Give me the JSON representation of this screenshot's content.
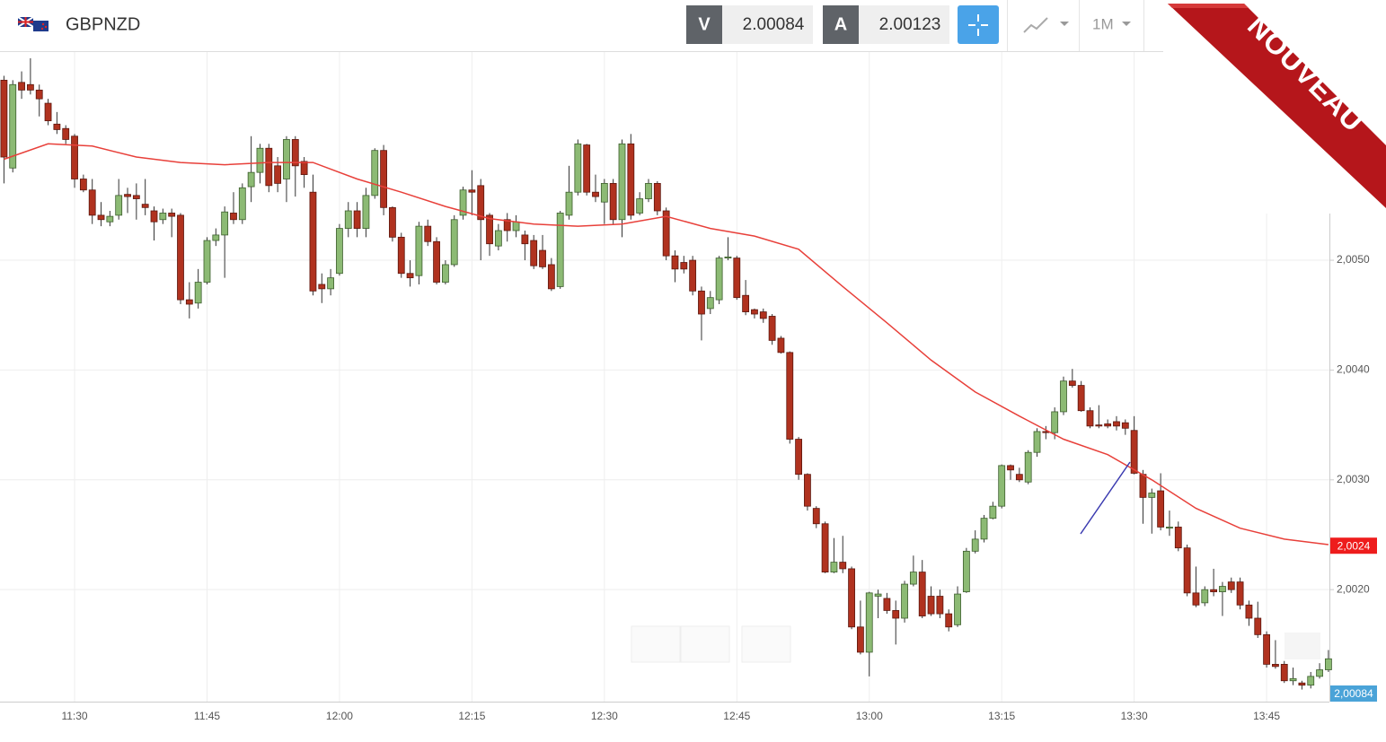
{
  "header": {
    "symbol": "GBPNZD",
    "bid_label": "V",
    "bid": 2.00084,
    "ask_label": "A",
    "ask": 2.00123,
    "timeframe": "1M"
  },
  "badge": "NOUVEAU",
  "chart_data": {
    "type": "candlestick",
    "x": [
      "11:22",
      "11:23",
      "11:24",
      "11:25",
      "11:26",
      "11:27",
      "11:28",
      "11:29",
      "11:30",
      "11:31",
      "11:32",
      "11:33",
      "11:34",
      "11:35",
      "11:36",
      "11:37",
      "11:38",
      "11:39",
      "11:40",
      "11:41",
      "11:42",
      "11:43",
      "11:44",
      "11:45",
      "11:46",
      "11:47",
      "11:48",
      "11:49",
      "11:50",
      "11:51",
      "11:52",
      "11:53",
      "11:54",
      "11:55",
      "11:56",
      "11:57",
      "11:58",
      "11:59",
      "12:00",
      "12:01",
      "12:02",
      "12:03",
      "12:04",
      "12:05",
      "12:06",
      "12:07",
      "12:08",
      "12:09",
      "12:10",
      "12:11",
      "12:12",
      "12:13",
      "12:14",
      "12:15",
      "12:16",
      "12:17",
      "12:18",
      "12:19",
      "12:20",
      "12:21",
      "12:22",
      "12:23",
      "12:24",
      "12:25",
      "12:26",
      "12:27",
      "12:28",
      "12:29",
      "12:30",
      "12:31",
      "12:32",
      "12:33",
      "12:34",
      "12:35",
      "12:36",
      "12:37",
      "12:38",
      "12:39",
      "12:40",
      "12:41",
      "12:42",
      "12:43",
      "12:44",
      "12:45",
      "12:46",
      "12:47",
      "12:48",
      "12:49",
      "12:50",
      "12:51",
      "12:52",
      "12:53",
      "12:54",
      "12:55",
      "12:56",
      "12:57",
      "12:58",
      "12:59",
      "13:00",
      "13:01",
      "13:02",
      "13:03",
      "13:04",
      "13:05",
      "13:06",
      "13:07",
      "13:08",
      "13:09",
      "13:10",
      "13:11",
      "13:12",
      "13:13",
      "13:14",
      "13:15",
      "13:16",
      "13:17",
      "13:18",
      "13:19",
      "13:20",
      "13:21",
      "13:22",
      "13:23",
      "13:24",
      "13:25",
      "13:26",
      "13:27",
      "13:28",
      "13:29",
      "13:30",
      "13:31",
      "13:32",
      "13:33",
      "13:34",
      "13:35",
      "13:36",
      "13:37",
      "13:38",
      "13:39",
      "13:40",
      "13:41",
      "13:42",
      "13:43",
      "13:44",
      "13:45",
      "13:46",
      "13:47",
      "13:48",
      "13:49",
      "13:50",
      "13:51",
      "13:52"
    ],
    "open": [
      2.00664,
      2.00584,
      2.00662,
      2.0066,
      2.00655,
      2.00643,
      2.00624,
      2.0062,
      2.00613,
      2.00574,
      2.00564,
      2.00541,
      2.00535,
      2.00541,
      2.0056,
      2.00559,
      2.00551,
      2.00545,
      2.00537,
      2.00543,
      2.00541,
      2.00464,
      2.00461,
      2.0048,
      2.00518,
      2.00523,
      2.00543,
      2.00537,
      2.00567,
      2.0058,
      2.00602,
      2.00586,
      2.00574,
      2.0061,
      2.0059,
      2.00562,
      2.00478,
      2.00474,
      2.00488,
      2.00529,
      2.00545,
      2.00529,
      2.00559,
      2.006,
      2.00548,
      2.00521,
      2.00488,
      2.00486,
      2.00531,
      2.00517,
      2.0048,
      2.00496,
      2.00541,
      2.00564,
      2.00568,
      2.00541,
      2.00513,
      2.00537,
      2.00527,
      2.00523,
      2.00518,
      2.00509,
      2.00496,
      2.00476,
      2.00541,
      2.00562,
      2.00605,
      2.00562,
      2.00553,
      2.0057,
      2.00537,
      2.00606,
      2.00543,
      2.00556,
      2.0057,
      2.00545,
      2.00504,
      2.00498,
      2.005,
      2.00472,
      2.00456,
      2.00464,
      2.00502,
      2.00502,
      2.00468,
      2.00455,
      2.00453,
      2.00449,
      2.00429,
      2.00416,
      2.00337,
      2.00305,
      2.00274,
      2.0026,
      2.00216,
      2.00225,
      2.00219,
      2.00166,
      2.00143,
      2.00194,
      2.00192,
      2.00181,
      2.00174,
      2.00205,
      2.00216,
      2.00194,
      2.00194,
      2.00178,
      2.00168,
      2.00198,
      2.00235,
      2.00246,
      2.00265,
      2.00276,
      2.00313,
      2.00305,
      2.00298,
      2.00325,
      2.00344,
      2.00343,
      2.00362,
      2.0039,
      2.00386,
      2.00363,
      2.0035,
      2.00351,
      2.00353,
      2.00352,
      2.00345,
      2.00305,
      2.00284,
      2.0029,
      2.00256,
      2.00257,
      2.00238,
      2.00197,
      2.00188,
      2.002,
      2.00198,
      2.00207,
      2.00207,
      2.00186,
      2.00174,
      2.00159,
      2.00132,
      2.00132,
      2.00117,
      2.00115,
      2.00113,
      2.00121,
      2.00127
    ],
    "high": [
      2.00668,
      2.00664,
      2.00672,
      2.00684,
      2.0066,
      2.00647,
      2.00635,
      2.00623,
      2.00615,
      2.00578,
      2.00574,
      2.00553,
      2.00545,
      2.00574,
      2.00566,
      2.0057,
      2.00574,
      2.00549,
      2.00547,
      2.00547,
      2.00543,
      2.0048,
      2.00492,
      2.00521,
      2.00529,
      2.00549,
      2.00562,
      2.0057,
      2.00613,
      2.00606,
      2.00606,
      2.00594,
      2.00613,
      2.00613,
      2.00594,
      2.00578,
      2.00488,
      2.00492,
      2.00533,
      2.00553,
      2.00553,
      2.00566,
      2.00602,
      2.00605,
      2.00549,
      2.00525,
      2.005,
      2.00535,
      2.00537,
      2.00521,
      2.005,
      2.00541,
      2.00567,
      2.00582,
      2.00574,
      2.00543,
      2.00533,
      2.00543,
      2.00541,
      2.00527,
      2.00523,
      2.00523,
      2.00502,
      2.00545,
      2.00586,
      2.0061,
      2.00606,
      2.00578,
      2.00574,
      2.00574,
      2.0061,
      2.00615,
      2.00562,
      2.00574,
      2.00572,
      2.00548,
      2.00509,
      2.00504,
      2.00504,
      2.00476,
      2.00472,
      2.00504,
      2.00521,
      2.00504,
      2.00482,
      2.00456,
      2.00456,
      2.00451,
      2.00431,
      2.00417,
      2.00339,
      2.00306,
      2.00276,
      2.00262,
      2.00247,
      2.00249,
      2.00221,
      2.0019,
      2.00198,
      2.002,
      2.00197,
      2.0019,
      2.00208,
      2.00231,
      2.00227,
      2.00203,
      2.002,
      2.00182,
      2.00203,
      2.00238,
      2.00254,
      2.00268,
      2.0028,
      2.00314,
      2.00314,
      2.00311,
      2.00327,
      2.00347,
      2.00349,
      2.00366,
      2.00394,
      2.00401,
      2.0039,
      2.00366,
      2.00368,
      2.00355,
      2.00358,
      2.00355,
      2.00358,
      2.00309,
      2.00292,
      2.00306,
      2.00272,
      2.00262,
      2.00241,
      2.00221,
      2.00203,
      2.00219,
      2.00207,
      2.00211,
      2.00211,
      2.0019,
      2.00189,
      2.00162,
      2.00154,
      2.00135,
      2.00129,
      2.00117,
      2.00125,
      2.00133,
      2.00145
    ],
    "low": [
      2.0057,
      2.0058,
      2.00647,
      2.00651,
      2.00631,
      2.00623,
      2.00615,
      2.00606,
      2.00566,
      2.00562,
      2.00533,
      2.00531,
      2.00531,
      2.00537,
      2.00543,
      2.00537,
      2.00541,
      2.00518,
      2.00533,
      2.00521,
      2.0046,
      2.00447,
      2.00456,
      2.00478,
      2.00513,
      2.00484,
      2.00533,
      2.00533,
      2.00553,
      2.0057,
      2.00562,
      2.00562,
      2.00553,
      2.00558,
      2.00566,
      2.00468,
      2.00461,
      2.00468,
      2.00486,
      2.00521,
      2.00521,
      2.00521,
      2.00556,
      2.00541,
      2.00517,
      2.00484,
      2.00476,
      2.00478,
      2.00513,
      2.00478,
      2.00478,
      2.00494,
      2.00537,
      2.00541,
      2.005,
      2.00504,
      2.00509,
      2.00517,
      2.00521,
      2.005,
      2.00492,
      2.00492,
      2.00472,
      2.00474,
      2.00537,
      2.00559,
      2.00559,
      2.00553,
      2.00533,
      2.00533,
      2.00521,
      2.00537,
      2.00541,
      2.00553,
      2.00541,
      2.005,
      2.0048,
      2.00488,
      2.00468,
      2.00427,
      2.00451,
      2.0046,
      2.005,
      2.00464,
      2.0045,
      2.00447,
      2.00443,
      2.00423,
      2.00415,
      2.00333,
      2.003,
      2.00272,
      2.00256,
      2.00215,
      2.00215,
      2.00215,
      2.00164,
      2.00141,
      2.00121,
      2.00174,
      2.00178,
      2.0015,
      2.0017,
      2.00203,
      2.00174,
      2.00176,
      2.00174,
      2.00162,
      2.00166,
      2.00197,
      2.00233,
      2.00243,
      2.00264,
      2.00274,
      2.003,
      2.00298,
      2.00296,
      2.00321,
      2.00337,
      2.00337,
      2.00359,
      2.00384,
      2.00362,
      2.00347,
      2.00347,
      2.00347,
      2.00345,
      2.00341,
      2.00305,
      2.0026,
      2.00251,
      2.00254,
      2.00249,
      2.00235,
      2.00194,
      2.00184,
      2.00185,
      2.00194,
      2.00176,
      2.00197,
      2.00182,
      2.00167,
      2.00156,
      2.00129,
      2.00128,
      2.00115,
      2.00113,
      2.00109,
      2.0011,
      2.00119,
      2.00125
    ],
    "close": [
      2.00594,
      2.0066,
      2.00655,
      2.00655,
      2.00647,
      2.00627,
      2.00619,
      2.0061,
      2.00574,
      2.00564,
      2.00541,
      2.00537,
      2.0054,
      2.00559,
      2.00558,
      2.00556,
      2.00548,
      2.00535,
      2.00543,
      2.0054,
      2.00464,
      2.0046,
      2.0048,
      2.00518,
      2.00523,
      2.00544,
      2.00537,
      2.00566,
      2.0058,
      2.00602,
      2.00568,
      2.0057,
      2.0061,
      2.00586,
      2.00578,
      2.00472,
      2.00474,
      2.00484,
      2.00529,
      2.00545,
      2.00529,
      2.00559,
      2.006,
      2.00548,
      2.00521,
      2.00488,
      2.00484,
      2.00531,
      2.00517,
      2.0048,
      2.00496,
      2.00537,
      2.00564,
      2.00562,
      2.00537,
      2.00515,
      2.00527,
      2.00527,
      2.00535,
      2.00515,
      2.00495,
      2.00494,
      2.00474,
      2.00543,
      2.00562,
      2.00606,
      2.00562,
      2.00558,
      2.0057,
      2.00537,
      2.00606,
      2.00541,
      2.00556,
      2.0057,
      2.00545,
      2.00504,
      2.00492,
      2.00492,
      2.00472,
      2.00451,
      2.00466,
      2.00502,
      2.00503,
      2.00466,
      2.00453,
      2.00451,
      2.00447,
      2.00427,
      2.00416,
      2.00337,
      2.00305,
      2.00276,
      2.0026,
      2.00216,
      2.00225,
      2.00219,
      2.00166,
      2.00143,
      2.00197,
      2.00196,
      2.00181,
      2.00174,
      2.00205,
      2.00216,
      2.00176,
      2.00178,
      2.00178,
      2.00166,
      2.00196,
      2.00235,
      2.00246,
      2.00265,
      2.00276,
      2.00313,
      2.00309,
      2.003,
      2.00325,
      2.00344,
      2.00343,
      2.00362,
      2.0039,
      2.00386,
      2.00363,
      2.00349,
      2.00349,
      2.00349,
      2.00349,
      2.00347,
      2.00306,
      2.00284,
      2.00288,
      2.00257,
      2.00257,
      2.00238,
      2.00197,
      2.00186,
      2.002,
      2.00198,
      2.00203,
      2.002,
      2.00186,
      2.00174,
      2.00159,
      2.00132,
      2.0013,
      2.00117,
      2.00119,
      2.00113,
      2.00121,
      2.00127,
      2.00137
    ],
    "up_color": "#8cba74",
    "down_color": "#b0321f",
    "moving_average": {
      "color": "#e8403a",
      "x": [
        "11:22",
        "11:27",
        "11:32",
        "11:37",
        "11:42",
        "11:47",
        "11:52",
        "11:57",
        "12:02",
        "12:07",
        "12:12",
        "12:17",
        "12:22",
        "12:27",
        "12:32",
        "12:37",
        "12:42",
        "12:47",
        "12:52",
        "12:57",
        "13:02",
        "13:07",
        "13:12",
        "13:17",
        "13:22",
        "13:27",
        "13:32",
        "13:37",
        "13:42",
        "13:47",
        "13:52"
      ],
      "values": [
        2.00592,
        2.00606,
        2.00604,
        2.00594,
        2.00589,
        2.00587,
        2.00589,
        2.00589,
        2.00574,
        2.00562,
        2.00549,
        2.00538,
        2.00533,
        2.00531,
        2.00533,
        2.0054,
        2.00529,
        2.00522,
        2.0051,
        2.00476,
        2.00443,
        2.00409,
        2.0038,
        2.00358,
        2.00337,
        2.00323,
        2.003,
        2.00274,
        2.00256,
        2.00246,
        2.00241
      ]
    },
    "price_tags": [
      {
        "value": 2.0024,
        "label": "2,0024",
        "color": "#ee1c1c"
      },
      {
        "value": 2.00084,
        "label": "2,00084",
        "color": "#4aa3d8"
      }
    ],
    "xticks": [
      "11:30",
      "11:45",
      "12:00",
      "12:15",
      "12:30",
      "12:45",
      "13:00",
      "13:15",
      "13:30",
      "13:45"
    ],
    "ylim": [
      2.00098,
      2.00688
    ],
    "yticks": [
      {
        "value": 2.005,
        "label": "2,0050"
      },
      {
        "value": 2.004,
        "label": "2,0040"
      },
      {
        "value": 2.003,
        "label": "2,0030"
      },
      {
        "value": 2.002,
        "label": "2,0020"
      }
    ],
    "grid": true
  }
}
